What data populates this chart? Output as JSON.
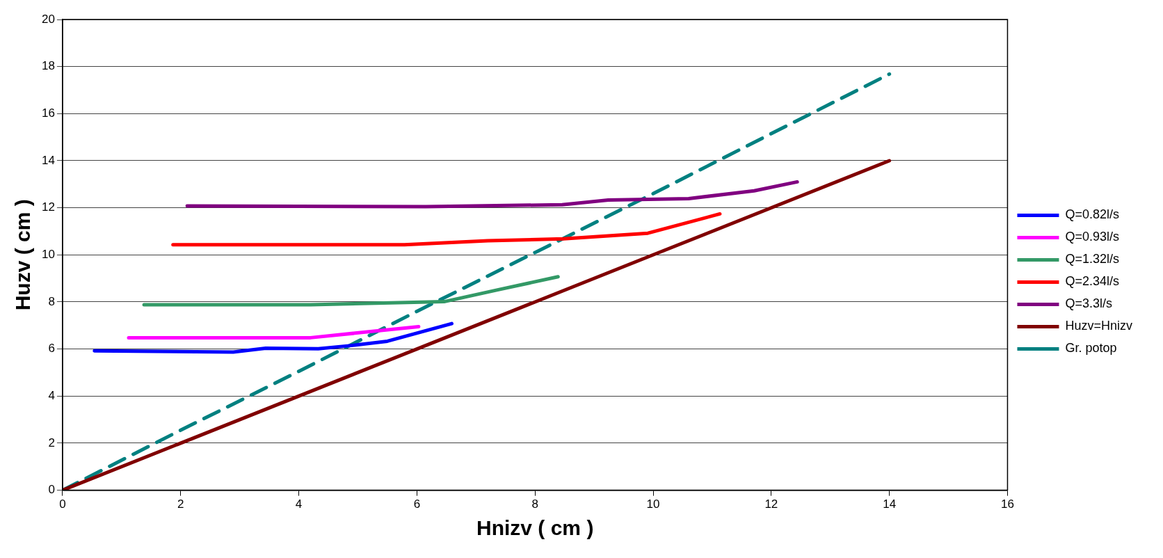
{
  "chart_data": {
    "type": "line",
    "xlabel": "Hnizv ( cm )",
    "ylabel": "Huzv ( cm )",
    "xlim": [
      0,
      16
    ],
    "xticks": [
      0,
      2,
      4,
      6,
      8,
      10,
      12,
      14,
      16
    ],
    "ylim": [
      0,
      20
    ],
    "yticks": [
      0,
      2,
      4,
      6,
      8,
      10,
      12,
      14,
      16,
      18,
      20
    ],
    "grid": "y",
    "legend": "right",
    "marker": "none",
    "series": [
      {
        "name": "Q=0.82l/s",
        "color": "#0000ff",
        "x": [
          0.54,
          2.89,
          3.44,
          4.33,
          4.86,
          5.5,
          6.59
        ],
        "values": [
          5.92,
          5.87,
          6.03,
          6.01,
          6.14,
          6.33,
          7.08
        ]
      },
      {
        "name": "Q=0.93l/s",
        "color": "#ff00ff",
        "x": [
          1.12,
          4.2,
          6.03
        ],
        "values": [
          6.48,
          6.48,
          6.95
        ]
      },
      {
        "name": "Q=1.32l/s",
        "color": "#339966",
        "x": [
          1.38,
          4.2,
          6.46,
          7.38,
          8.39
        ],
        "values": [
          7.88,
          7.88,
          8.01,
          8.52,
          9.07
        ]
      },
      {
        "name": "Q=2.34l/s",
        "color": "#ff0000",
        "x": [
          1.87,
          5.79,
          7.2,
          8.48,
          9.91,
          11.13
        ],
        "values": [
          10.43,
          10.43,
          10.6,
          10.68,
          10.92,
          11.74
        ]
      },
      {
        "name": "Q=3.3l/s",
        "color": "#800080",
        "x": [
          2.11,
          6.15,
          8.46,
          9.24,
          10.6,
          11.71,
          12.44
        ],
        "values": [
          12.08,
          12.05,
          12.13,
          12.33,
          12.39,
          12.72,
          13.1
        ]
      },
      {
        "name": "Huzv=Hnizv",
        "color": "#800000",
        "x": [
          0,
          3,
          6,
          8,
          10,
          11,
          14
        ],
        "values": [
          0,
          3,
          6,
          8,
          10,
          11,
          14
        ]
      },
      {
        "name": "Gr. potop",
        "color": "#008080",
        "line_style": "dashed",
        "x": [
          0,
          2,
          4,
          6,
          8,
          10,
          12,
          14
        ],
        "values": [
          0,
          2.55,
          5.05,
          7.6,
          10.1,
          12.6,
          15.15,
          17.68
        ]
      }
    ]
  }
}
